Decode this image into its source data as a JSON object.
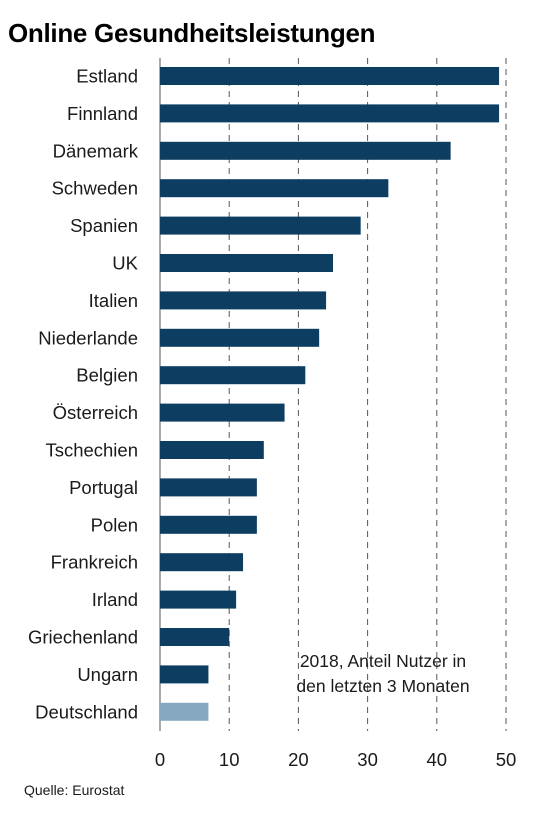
{
  "chart_data": {
    "type": "bar",
    "orientation": "horizontal",
    "title": "Online Gesundheitsleistungen",
    "categories": [
      "Estland",
      "Finnland",
      "Dänemark",
      "Schweden",
      "Spanien",
      "UK",
      "Italien",
      "Niederlande",
      "Belgien",
      "Österreich",
      "Tschechien",
      "Portugal",
      "Polen",
      "Frankreich",
      "Irland",
      "Griechenland",
      "Ungarn",
      "Deutschland"
    ],
    "values": [
      49,
      49,
      42,
      33,
      29,
      25,
      24,
      23,
      21,
      18,
      15,
      14,
      14,
      12,
      11,
      10,
      7,
      7
    ],
    "highlight": "Deutschland",
    "xlim": [
      0,
      50
    ],
    "xticks": [
      0,
      10,
      20,
      30,
      40,
      50
    ],
    "grid": "vertical dashed",
    "annotation": [
      "2018, Anteil Nutzer in",
      "den letzten 3 Monaten"
    ],
    "source": "Quelle: Eurostat",
    "colors": {
      "bar": "#0d3e61",
      "highlight": "#86a9c1"
    }
  }
}
